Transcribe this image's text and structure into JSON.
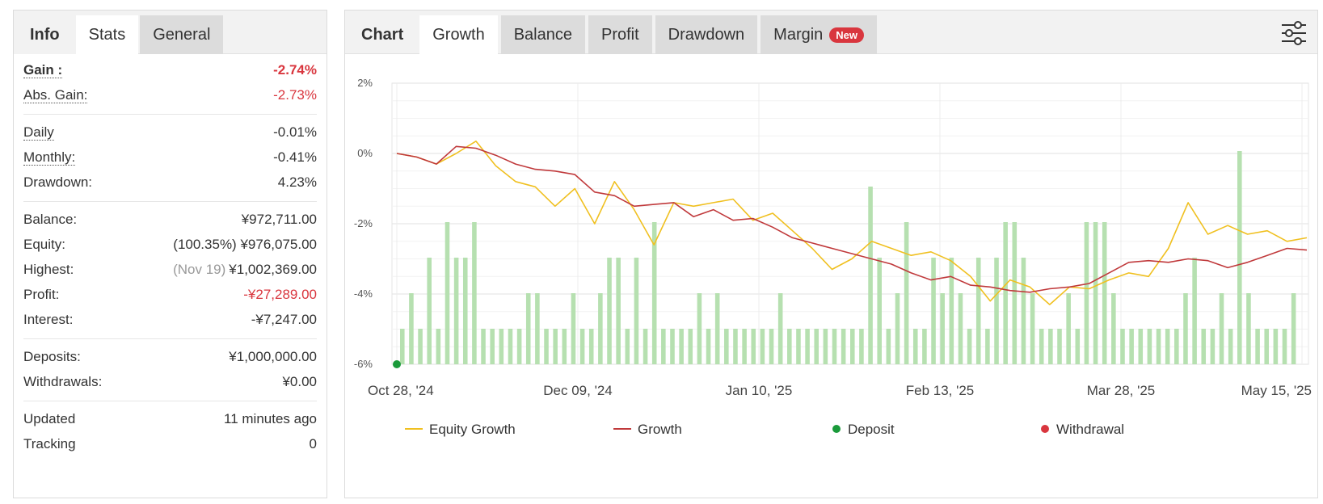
{
  "left": {
    "tabs": [
      "Info",
      "Stats",
      "General"
    ],
    "gain": {
      "label": "Gain :",
      "value": "-2.74%"
    },
    "abs_gain": {
      "label": "Abs. Gain:",
      "value": "-2.73%"
    },
    "daily": {
      "label": "Daily",
      "value": "-0.01%"
    },
    "monthly": {
      "label": "Monthly:",
      "value": "-0.41%"
    },
    "drawdown": {
      "label": "Drawdown:",
      "value": "4.23%"
    },
    "balance": {
      "label": "Balance:",
      "value": "¥972,711.00"
    },
    "equity": {
      "label": "Equity:",
      "prefix": "(100.35%)",
      "value": "¥976,075.00"
    },
    "highest": {
      "label": "Highest:",
      "prefix": "(Nov 19)",
      "value": "¥1,002,369.00"
    },
    "profit": {
      "label": "Profit:",
      "value": "-¥27,289.00"
    },
    "interest": {
      "label": "Interest:",
      "value": "-¥7,247.00"
    },
    "deposits": {
      "label": "Deposits:",
      "value": "¥1,000,000.00"
    },
    "withdrawals": {
      "label": "Withdrawals:",
      "value": "¥0.00"
    },
    "updated": {
      "label": "Updated",
      "value": "11 minutes ago"
    },
    "tracking": {
      "label": "Tracking",
      "value": "0"
    }
  },
  "right": {
    "tabs": [
      "Chart",
      "Growth",
      "Balance",
      "Profit",
      "Drawdown",
      "Margin"
    ],
    "badge": "New",
    "settings_icon": "sliders-icon"
  },
  "colors": {
    "equity": "#f0c020",
    "growth": "#c0393b",
    "deposit": "#1a9a3a",
    "withdrawal": "#d9363e",
    "bars": "#b6e0b0",
    "red_text": "#d9363e"
  },
  "chart_data": {
    "type": "line",
    "ylim": [
      -6,
      2
    ],
    "y_ticks": [
      "2%",
      "0%",
      "-2%",
      "-4%",
      "-6%"
    ],
    "y_tick_values": [
      2,
      0,
      -2,
      -4,
      -6
    ],
    "x_ticks": [
      "Oct 28, '24",
      "Dec 09, '24",
      "Jan 10, '25",
      "Feb 13, '25",
      "Mar 28, '25",
      "May 15, '25"
    ],
    "legend": [
      "Equity Growth",
      "Growth",
      "Deposit",
      "Withdrawal"
    ],
    "series": [
      {
        "name": "Equity Growth",
        "values": [
          0.0,
          -0.1,
          -0.3,
          0.0,
          0.35,
          -0.35,
          -0.8,
          -0.95,
          -1.5,
          -1.0,
          -2.0,
          -0.8,
          -1.6,
          -2.6,
          -1.4,
          -1.5,
          -1.4,
          -1.3,
          -1.9,
          -1.7,
          -2.2,
          -2.7,
          -3.3,
          -3.0,
          -2.5,
          -2.7,
          -2.9,
          -2.8,
          -3.05,
          -3.5,
          -4.2,
          -3.6,
          -3.8,
          -4.3,
          -3.8,
          -3.85,
          -3.6,
          -3.4,
          -3.5,
          -2.7,
          -1.4,
          -2.3,
          -2.05,
          -2.3,
          -2.2,
          -2.5,
          -2.4
        ]
      },
      {
        "name": "Growth",
        "values": [
          0.0,
          -0.1,
          -0.3,
          0.2,
          0.15,
          -0.05,
          -0.3,
          -0.45,
          -0.5,
          -0.6,
          -1.1,
          -1.2,
          -1.5,
          -1.45,
          -1.4,
          -1.8,
          -1.6,
          -1.9,
          -1.85,
          -2.1,
          -2.4,
          -2.55,
          -2.7,
          -2.85,
          -3.0,
          -3.15,
          -3.4,
          -3.6,
          -3.5,
          -3.75,
          -3.8,
          -3.9,
          -3.95,
          -3.85,
          -3.8,
          -3.7,
          -3.4,
          -3.1,
          -3.05,
          -3.1,
          -3.0,
          -3.05,
          -3.25,
          -3.1,
          -2.9,
          -2.7,
          -2.75
        ]
      }
    ],
    "deposits": [
      {
        "x": "Oct 28, '24",
        "y": -6
      }
    ],
    "withdrawals": [],
    "bars": [
      1,
      2,
      1,
      3,
      1,
      4,
      3,
      3,
      4,
      1,
      1,
      1,
      1,
      1,
      2,
      2,
      1,
      1,
      1,
      2,
      1,
      1,
      2,
      3,
      3,
      1,
      3,
      1,
      4,
      1,
      1,
      1,
      1,
      2,
      1,
      2,
      1,
      1,
      1,
      1,
      1,
      1,
      2,
      1,
      1,
      1,
      1,
      1,
      1,
      1,
      1,
      1,
      5,
      3,
      1,
      2,
      4,
      1,
      1,
      3,
      2,
      3,
      2,
      1,
      3,
      1,
      3,
      4,
      4,
      3,
      2,
      1,
      1,
      1,
      2,
      1,
      4,
      4,
      4,
      2,
      1,
      1,
      1,
      1,
      1,
      1,
      1,
      2,
      3,
      1,
      1,
      2,
      1,
      6,
      2,
      1,
      1,
      1,
      1,
      2
    ]
  }
}
